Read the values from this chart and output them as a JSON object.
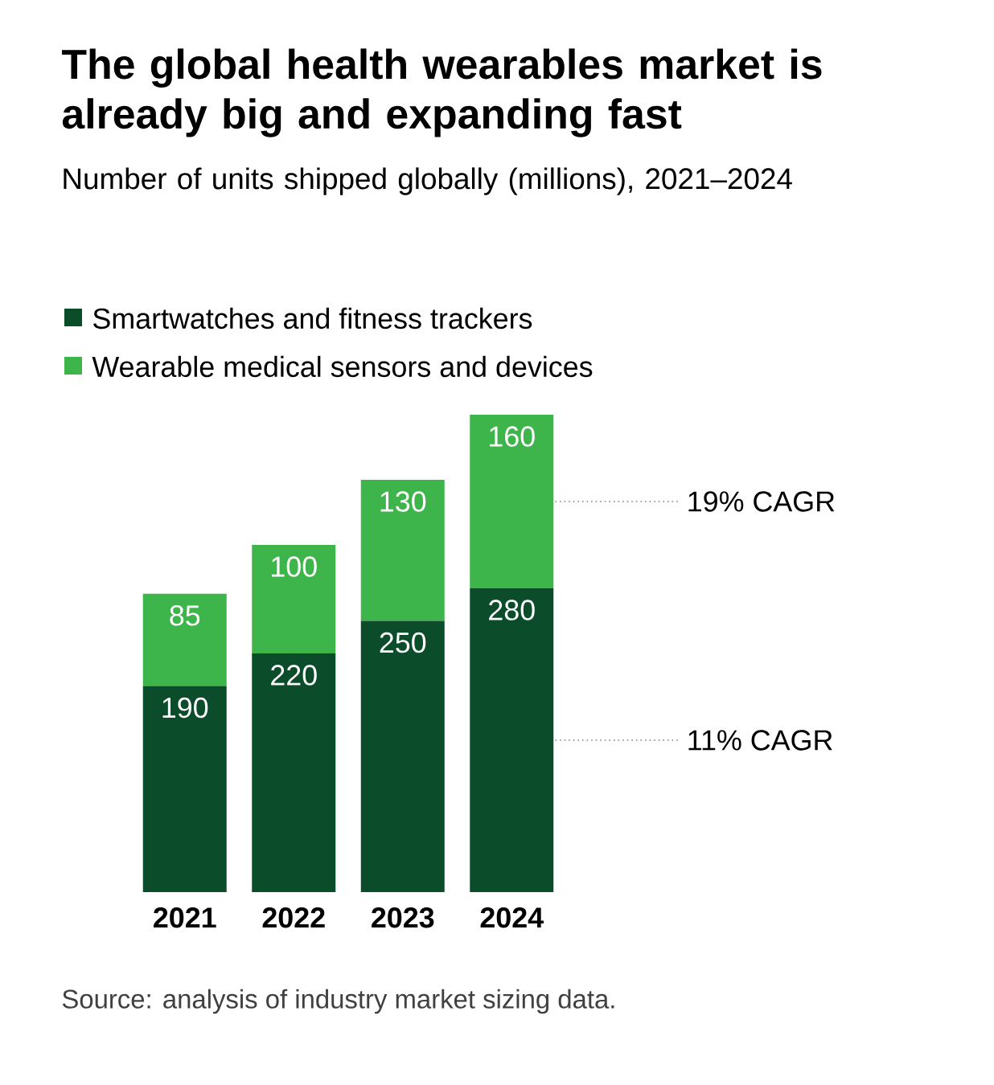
{
  "chart_data": {
    "type": "bar",
    "stacked": true,
    "title": "The global health wearables market is already big and expanding fast",
    "subtitle": "Number of units shipped globally (millions), 2021–2024",
    "categories": [
      "2021",
      "2022",
      "2023",
      "2024"
    ],
    "series": [
      {
        "name": "Smartwatches and fitness trackers",
        "color": "#0b4d2b",
        "values": [
          190,
          220,
          250,
          280
        ]
      },
      {
        "name": "Wearable medical sensors and devices",
        "color": "#3db54a",
        "values": [
          85,
          100,
          130,
          160
        ]
      }
    ],
    "data_labels": true,
    "legend": "top left",
    "annotations": [
      "19% CAGR",
      "11% CAGR",
      "Source: analysis of industry market sizing data."
    ]
  }
}
